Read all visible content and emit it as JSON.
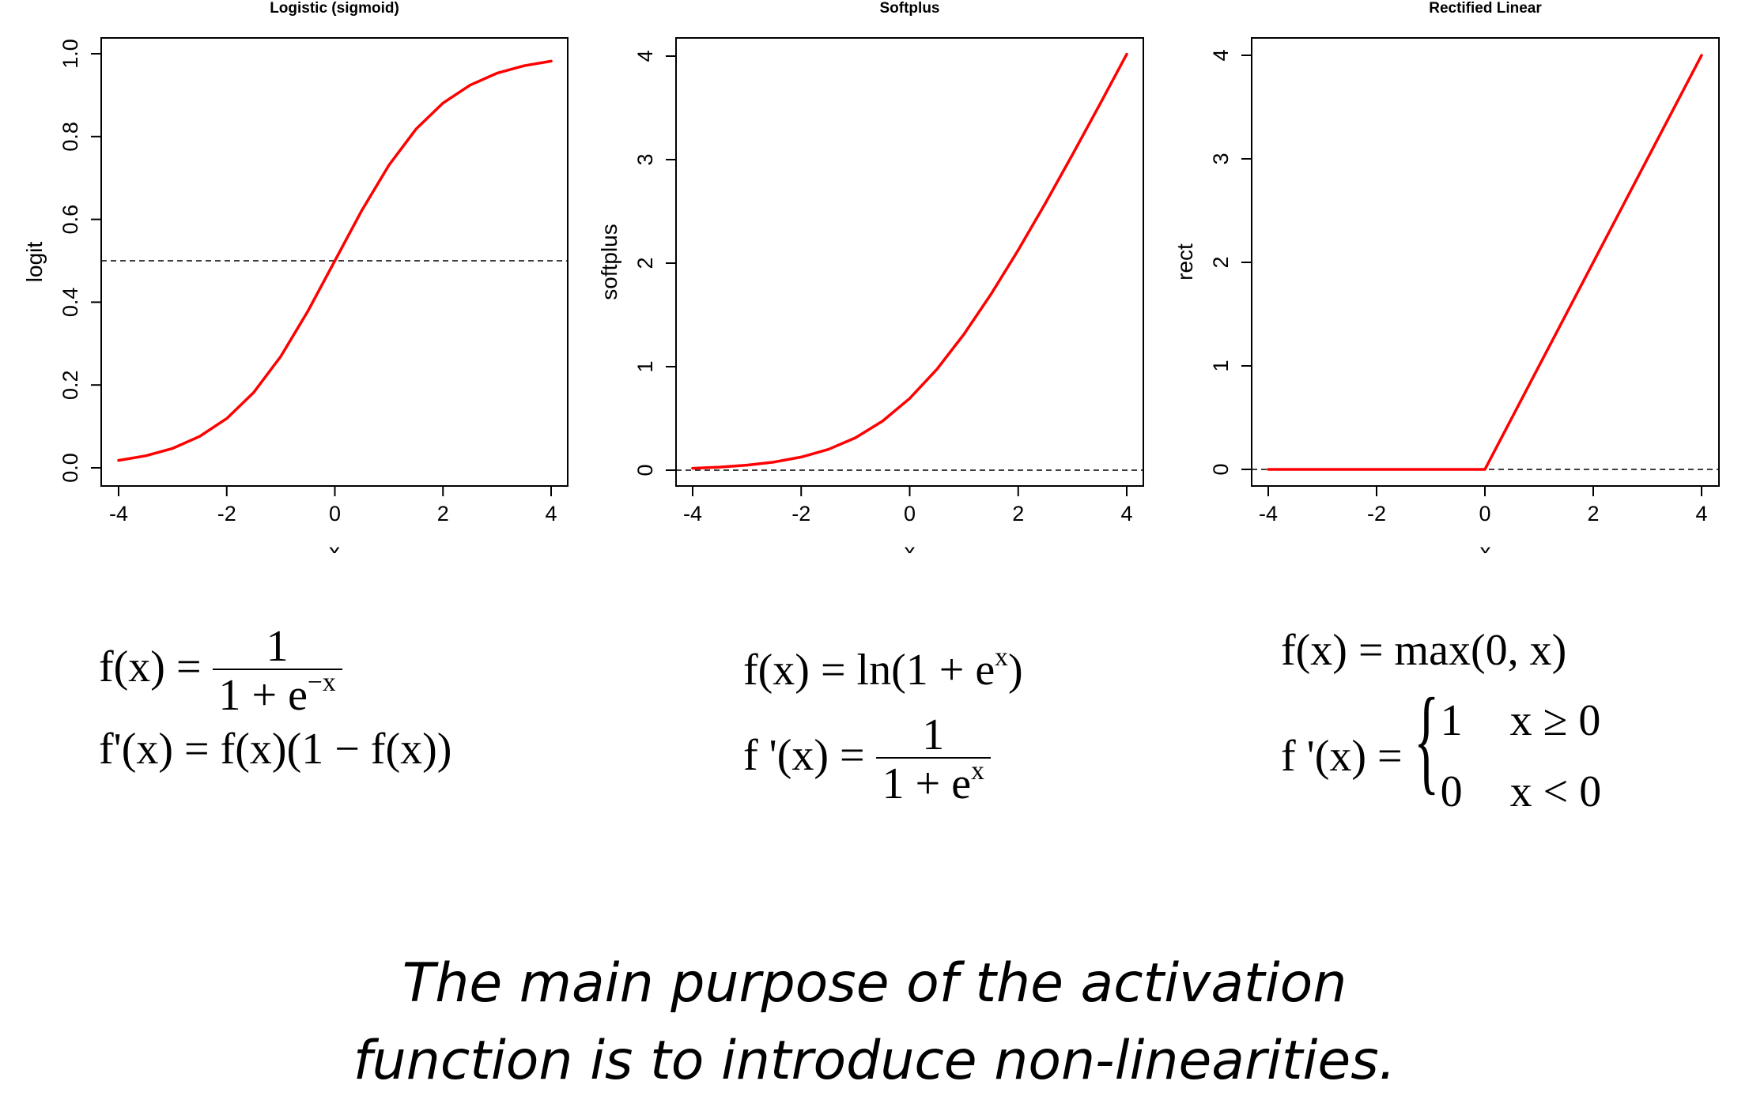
{
  "chart_data": [
    {
      "type": "line",
      "title": "Logistic (sigmoid)",
      "xlabel": "x",
      "ylabel": "logit",
      "xlim": [
        -4,
        4
      ],
      "ylim": [
        0,
        1
      ],
      "xticks": [
        -4,
        -2,
        0,
        2,
        4
      ],
      "yticks": [
        0.0,
        0.2,
        0.4,
        0.6,
        0.8,
        1.0
      ],
      "ytick_labels": [
        "0.0",
        "0.2",
        "0.4",
        "0.6",
        "0.8",
        "1.0"
      ],
      "reference_line": 0.5,
      "x": [
        -4,
        -3.5,
        -3,
        -2.5,
        -2,
        -1.5,
        -1,
        -0.5,
        0,
        0.5,
        1,
        1.5,
        2,
        2.5,
        3,
        3.5,
        4
      ],
      "y": [
        0.018,
        0.029,
        0.047,
        0.076,
        0.119,
        0.182,
        0.269,
        0.378,
        0.5,
        0.622,
        0.731,
        0.818,
        0.881,
        0.924,
        0.953,
        0.971,
        0.982
      ],
      "color": "#ff0000"
    },
    {
      "type": "line",
      "title": "Softplus",
      "xlabel": "x",
      "ylabel": "softplus",
      "xlim": [
        -4,
        4
      ],
      "ylim": [
        0,
        4
      ],
      "xticks": [
        -4,
        -2,
        0,
        2,
        4
      ],
      "yticks": [
        0,
        1,
        2,
        3,
        4
      ],
      "ytick_labels": [
        "0",
        "1",
        "2",
        "3",
        "4"
      ],
      "reference_line": 0,
      "x": [
        -4,
        -3.5,
        -3,
        -2.5,
        -2,
        -1.5,
        -1,
        -0.5,
        0,
        0.5,
        1,
        1.5,
        2,
        2.5,
        3,
        3.5,
        4
      ],
      "y": [
        0.018,
        0.03,
        0.049,
        0.079,
        0.127,
        0.201,
        0.313,
        0.474,
        0.693,
        0.974,
        1.313,
        1.701,
        2.127,
        2.579,
        3.049,
        3.53,
        4.018
      ],
      "color": "#ff0000"
    },
    {
      "type": "line",
      "title": "Rectified Linear",
      "xlabel": "x",
      "ylabel": "rect",
      "xlim": [
        -4,
        4
      ],
      "ylim": [
        0,
        4
      ],
      "xticks": [
        -4,
        -2,
        0,
        2,
        4
      ],
      "yticks": [
        0,
        1,
        2,
        3,
        4
      ],
      "ytick_labels": [
        "0",
        "1",
        "2",
        "3",
        "4"
      ],
      "reference_line": 0,
      "x": [
        -4,
        0,
        4
      ],
      "y": [
        0,
        0,
        4
      ],
      "color": "#ff0000"
    }
  ],
  "formulas": {
    "sigmoid": {
      "f_lhs": "f(x) =",
      "f_num": "1",
      "f_den_base": "1 + e",
      "f_den_exp": "−x",
      "fp": "f'(x) = f(x)(1 − f(x))"
    },
    "softplus": {
      "f_base": "f(x) = ln(1 + e",
      "f_exp": "x",
      "f_close": ")",
      "fp_lhs": "f '(x) =",
      "fp_num": "1",
      "fp_den_base": "1 + e",
      "fp_den_exp": "x"
    },
    "relu": {
      "f": "f(x) = max(0, x)",
      "fp_lhs": "f '(x) =",
      "case1_val": "1",
      "case1_cond": "x ≥ 0",
      "case2_val": "0",
      "case2_cond": "x < 0"
    }
  },
  "caption": {
    "line1": "The main purpose of the activation",
    "line2": "function is to introduce non-linearities."
  }
}
